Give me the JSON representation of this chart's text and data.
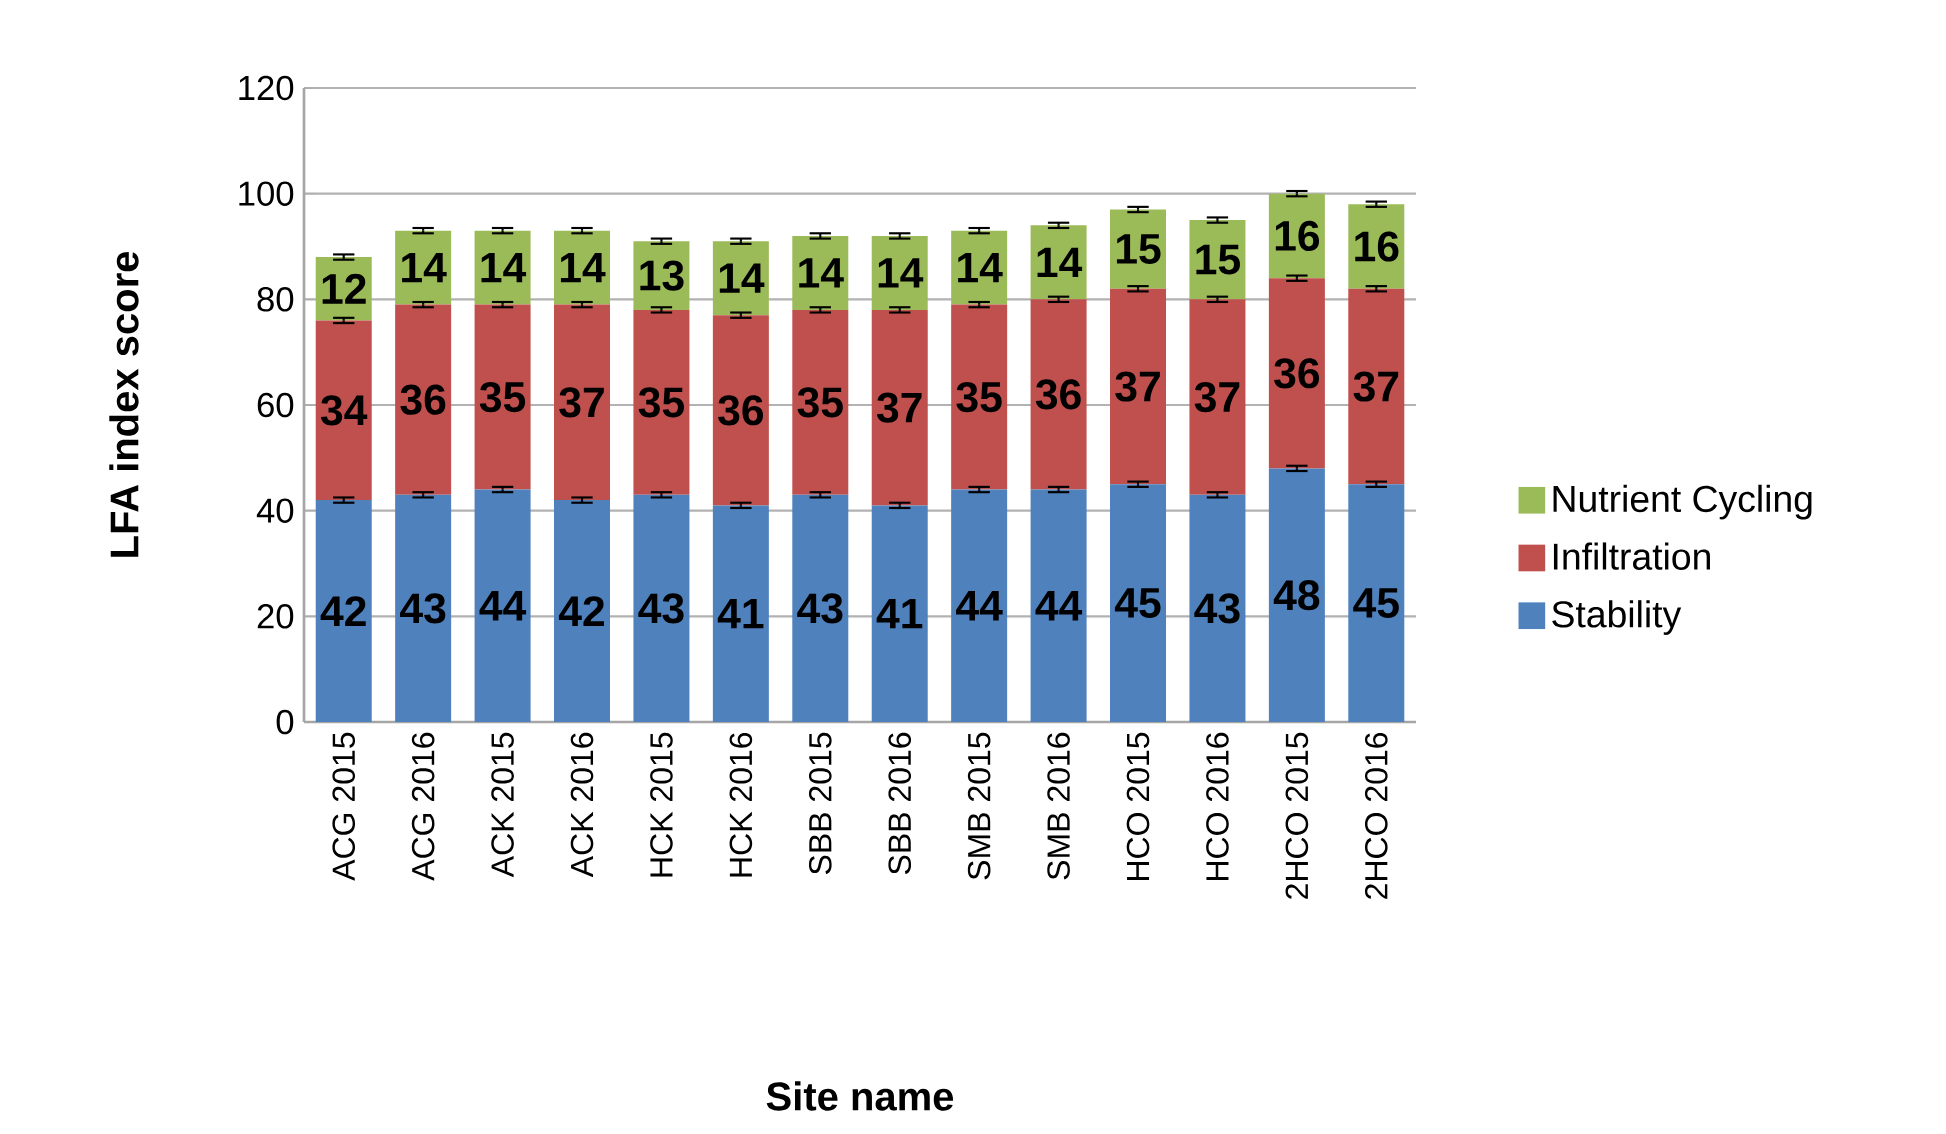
{
  "chart_data": {
    "type": "bar",
    "stacked": true,
    "xlabel": "Site name",
    "ylabel": "LFA index score",
    "categories": [
      "ACG 2015",
      "ACG 2016",
      "ACK 2015",
      "ACK 2016",
      "HCK 2015",
      "HCK 2016",
      "SBB 2015",
      "SBB 2016",
      "SMB 2015",
      "SMB 2016",
      "HCO 2015",
      "HCO 2016",
      "2HCO 2015",
      "2HCO 2016"
    ],
    "series": [
      {
        "name": "Stability",
        "color": "#4f81bd",
        "values": [
          42,
          43,
          44,
          42,
          43,
          41,
          43,
          41,
          44,
          44,
          45,
          43,
          48,
          45
        ],
        "errors": [
          0.5,
          0.5,
          0.5,
          0.5,
          0.5,
          0.5,
          0.5,
          0.5,
          0.5,
          0.5,
          0.5,
          0.5,
          0.5,
          0.5
        ]
      },
      {
        "name": "Infiltration",
        "color": "#c0504d",
        "values": [
          34,
          36,
          35,
          37,
          35,
          36,
          35,
          37,
          35,
          36,
          37,
          37,
          36,
          37
        ],
        "errors": [
          0.5,
          0.5,
          0.5,
          0.5,
          0.5,
          0.5,
          0.5,
          0.5,
          0.5,
          0.5,
          0.5,
          0.5,
          0.5,
          0.5
        ]
      },
      {
        "name": "Nutrient Cycling",
        "color": "#9bbb59",
        "values": [
          12,
          14,
          14,
          14,
          13,
          14,
          14,
          14,
          14,
          14,
          15,
          15,
          16,
          16
        ],
        "errors": [
          0.5,
          0.5,
          0.5,
          0.5,
          0.5,
          0.5,
          0.5,
          0.5,
          0.5,
          0.5,
          0.5,
          0.5,
          0.5,
          0.5
        ]
      }
    ],
    "ylim": [
      0,
      120
    ],
    "yticks": [
      0,
      20,
      40,
      60,
      80,
      100,
      120
    ],
    "grid": "y",
    "legend": "right",
    "data_labels": true
  }
}
